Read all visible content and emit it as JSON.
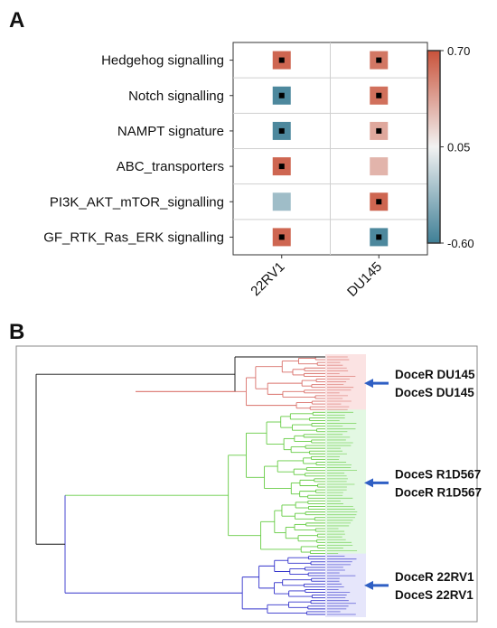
{
  "panels": {
    "a_label": "A",
    "b_label": "B"
  },
  "chart_data": [
    {
      "type": "heatmap",
      "rows": [
        "Hedgehog signalling",
        "Notch signalling",
        "NAMPT signature",
        "ABC_transporters",
        "PI3K_AKT_mTOR_signalling",
        "GF_RTK_Ras_ERK signalling"
      ],
      "columns": [
        "22RV1",
        "DU145"
      ],
      "values": [
        [
          0.62,
          0.55
        ],
        [
          -0.55,
          0.58
        ],
        [
          -0.55,
          0.35
        ],
        [
          0.62,
          0.3
        ],
        [
          -0.25,
          0.62
        ],
        [
          0.62,
          -0.55
        ]
      ],
      "significant": [
        [
          true,
          true
        ],
        [
          true,
          true
        ],
        [
          true,
          true
        ],
        [
          true,
          false
        ],
        [
          false,
          true
        ],
        [
          true,
          true
        ]
      ],
      "colorbar": {
        "min": -0.6,
        "max": 0.7,
        "ticks": [
          "0.70",
          "0.05",
          "-0.60"
        ],
        "low_color": "#3f7f96",
        "mid_color": "#f2f2f2",
        "high_color": "#c9523a"
      },
      "grid": true
    },
    {
      "type": "dendrogram",
      "clusters": [
        {
          "color": "#d9706a",
          "leaves": 20,
          "annotation": [
            "DoceR DU145",
            "DoceS DU145"
          ]
        },
        {
          "color": "#66cc44",
          "leaves": 52,
          "annotation": [
            "DoceS R1D567",
            "DoceR R1D567"
          ]
        },
        {
          "color": "#3333cc",
          "leaves": 22,
          "annotation": [
            "DoceR 22RV1",
            "DoceS 22RV1"
          ]
        }
      ],
      "arrow_color": "#2f5fc4"
    }
  ]
}
